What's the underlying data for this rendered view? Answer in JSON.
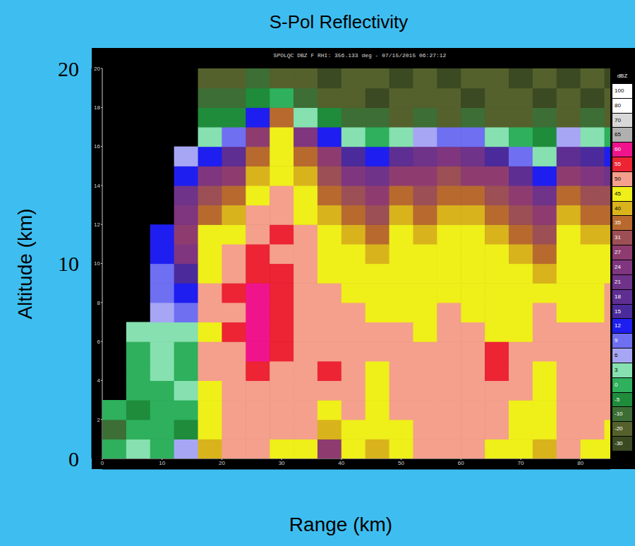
{
  "chart_data": {
    "type": "heatmap",
    "title": "S-Pol Reflectivity",
    "subtitle": "SPOLQC DBZ F RHI: 356.133 deg - 07/15/2015 06:27:12",
    "x_label": "Range (km)",
    "y_label": "Altitude (km)",
    "xlim": [
      0,
      85
    ],
    "ylim": [
      0,
      20
    ],
    "xticks": [
      0,
      40,
      80
    ],
    "yticks": [
      0,
      10,
      20
    ],
    "x2ticks": [
      0,
      10,
      20,
      30,
      40,
      50,
      60,
      70,
      80
    ],
    "y2ticks": [
      2,
      4,
      6,
      8,
      10,
      12,
      14,
      16,
      18,
      20
    ],
    "x": [
      2,
      6,
      10,
      14,
      18,
      22,
      26,
      30,
      34,
      38,
      42,
      46,
      50,
      54,
      58,
      62,
      66,
      70,
      74,
      78,
      82,
      86
    ],
    "y": [
      0.5,
      1.5,
      2.5,
      3.5,
      4.5,
      5.5,
      6.5,
      7.5,
      8.5,
      9.5,
      10.5,
      11.5,
      12.5,
      13.5,
      14.5,
      15.5,
      16.5,
      17.5,
      18.5,
      19.5
    ],
    "cells": [
      [
        0,
        3,
        0,
        6,
        40,
        50,
        50,
        45,
        45,
        27,
        45,
        40,
        45,
        50,
        50,
        50,
        45,
        45,
        40,
        50,
        45,
        45
      ],
      [
        -10,
        0,
        0,
        -5,
        45,
        50,
        50,
        50,
        50,
        40,
        45,
        45,
        45,
        50,
        50,
        50,
        50,
        45,
        45,
        50,
        50,
        45
      ],
      [
        0,
        -5,
        0,
        0,
        45,
        50,
        50,
        50,
        50,
        45,
        50,
        45,
        50,
        50,
        50,
        50,
        50,
        45,
        45,
        50,
        50,
        50
      ],
      [
        null,
        0,
        0,
        3,
        45,
        50,
        50,
        50,
        50,
        50,
        50,
        45,
        50,
        50,
        50,
        50,
        50,
        50,
        45,
        50,
        50,
        50
      ],
      [
        null,
        0,
        3,
        0,
        50,
        50,
        55,
        50,
        50,
        55,
        50,
        45,
        50,
        50,
        50,
        50,
        55,
        50,
        45,
        50,
        50,
        50
      ],
      [
        null,
        0,
        3,
        0,
        50,
        50,
        60,
        55,
        50,
        50,
        50,
        50,
        50,
        50,
        50,
        50,
        55,
        50,
        50,
        50,
        50,
        50
      ],
      [
        null,
        3,
        3,
        3,
        45,
        55,
        60,
        55,
        50,
        50,
        50,
        50,
        50,
        45,
        50,
        50,
        45,
        45,
        50,
        50,
        50,
        50
      ],
      [
        null,
        null,
        6,
        9,
        50,
        50,
        60,
        55,
        50,
        50,
        50,
        45,
        45,
        45,
        50,
        45,
        45,
        45,
        50,
        45,
        45,
        50
      ],
      [
        null,
        null,
        9,
        12,
        50,
        55,
        60,
        55,
        50,
        50,
        45,
        45,
        45,
        45,
        45,
        45,
        45,
        45,
        45,
        45,
        45,
        50
      ],
      [
        null,
        null,
        9,
        15,
        45,
        50,
        55,
        55,
        50,
        45,
        45,
        45,
        45,
        45,
        45,
        45,
        45,
        45,
        40,
        45,
        45,
        45
      ],
      [
        null,
        null,
        12,
        24,
        45,
        50,
        55,
        50,
        50,
        45,
        45,
        40,
        45,
        45,
        45,
        45,
        45,
        40,
        35,
        45,
        45,
        45
      ],
      [
        null,
        null,
        12,
        27,
        45,
        45,
        50,
        55,
        50,
        45,
        40,
        35,
        45,
        40,
        45,
        45,
        40,
        35,
        31,
        45,
        40,
        40
      ],
      [
        null,
        null,
        null,
        24,
        35,
        40,
        50,
        50,
        45,
        40,
        35,
        31,
        40,
        35,
        40,
        40,
        35,
        31,
        27,
        40,
        35,
        35
      ],
      [
        null,
        null,
        null,
        21,
        31,
        35,
        45,
        50,
        45,
        35,
        31,
        27,
        35,
        31,
        35,
        35,
        31,
        27,
        21,
        35,
        31,
        31
      ],
      [
        null,
        null,
        null,
        12,
        24,
        27,
        40,
        45,
        40,
        31,
        24,
        21,
        27,
        27,
        31,
        27,
        27,
        18,
        12,
        27,
        24,
        21
      ],
      [
        null,
        null,
        null,
        6,
        12,
        18,
        35,
        45,
        35,
        27,
        15,
        12,
        18,
        21,
        24,
        21,
        15,
        9,
        3,
        18,
        15,
        12
      ],
      [
        null,
        null,
        null,
        null,
        3,
        9,
        27,
        45,
        24,
        12,
        3,
        0,
        3,
        6,
        9,
        9,
        3,
        0,
        -5,
        6,
        3,
        0
      ],
      [
        null,
        null,
        null,
        null,
        -5,
        -5,
        12,
        35,
        3,
        -5,
        -10,
        -10,
        -20,
        -10,
        -20,
        -10,
        -20,
        -20,
        -10,
        -20,
        -10,
        -20
      ],
      [
        null,
        null,
        null,
        null,
        -10,
        -10,
        -5,
        0,
        -10,
        -20,
        -20,
        -30,
        -20,
        -20,
        -20,
        -30,
        -20,
        -20,
        -30,
        -20,
        -30,
        -20
      ],
      [
        null,
        null,
        null,
        null,
        -20,
        -20,
        -10,
        -20,
        -20,
        -30,
        -20,
        -20,
        -30,
        -20,
        -30,
        -20,
        -20,
        -30,
        -20,
        -30,
        -20,
        -30
      ]
    ],
    "colorbar": {
      "label": "dBZ",
      "ticks": [
        -30,
        -20,
        -10,
        -5,
        0,
        3,
        6,
        9,
        12,
        15,
        18,
        21,
        24,
        27,
        31,
        35,
        40,
        45,
        50,
        55,
        60,
        65,
        70,
        80,
        100
      ],
      "colors": [
        "#3b4a22",
        "#55612c",
        "#3d6e35",
        "#1f8c3b",
        "#2eb05c",
        "#86e0b0",
        "#a7a6f5",
        "#6f6ff2",
        "#1e1ef0",
        "#4b2b9c",
        "#5e2e92",
        "#6f3389",
        "#7f367f",
        "#8e3c70",
        "#9c4f55",
        "#b86a2e",
        "#d9b31c",
        "#efef1a",
        "#f4a08c",
        "#ec2434",
        "#f0148c",
        "#b0b0b0",
        "#d8d8d8",
        "#ffffff",
        "#ffffff"
      ]
    }
  }
}
